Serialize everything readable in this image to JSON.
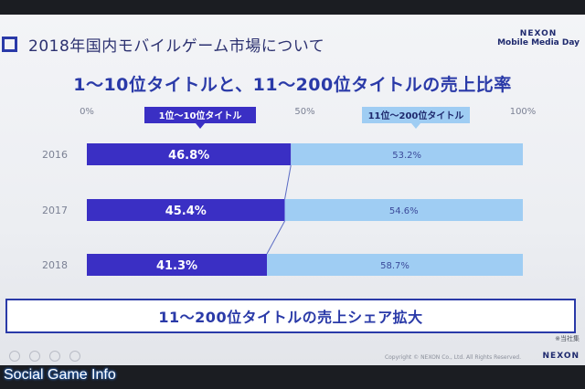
{
  "slide": {
    "title": "2018年国内モバイルゲーム市場について",
    "brand_line1": "NEXON",
    "brand_line2": "Mobile Media Day",
    "headline": "1〜10位タイトルと、11〜200位タイトルの売上比率",
    "footer_text": "11〜200位タイトルの売上シェア拡大",
    "footnote": "※当社集",
    "copyright": "Copyright © NEXON Co., Ltd. All Rights Reserved.",
    "footer_brand": "NEXON"
  },
  "watermark": "Social Game Info",
  "colors": {
    "series_top": "#3a2fc4",
    "series_rest": "#9fcdf3",
    "accent": "#2a3aa8"
  },
  "chart_data": {
    "type": "bar",
    "orientation": "horizontal",
    "stacked": true,
    "categories": [
      "2016",
      "2017",
      "2018"
    ],
    "series": [
      {
        "name": "1位〜10位タイトル",
        "values": [
          46.8,
          45.4,
          41.3
        ],
        "labels": [
          "46.8%",
          "45.4%",
          "41.3%"
        ]
      },
      {
        "name": "11位〜200位タイトル",
        "values": [
          53.2,
          54.6,
          58.7
        ],
        "labels": [
          "53.2%",
          "54.6%",
          "58.7%"
        ]
      }
    ],
    "xticks": [
      "0%",
      "50%",
      "100%"
    ],
    "xlim": [
      0,
      100
    ],
    "legend": "top, inline over bars",
    "grid": false
  }
}
